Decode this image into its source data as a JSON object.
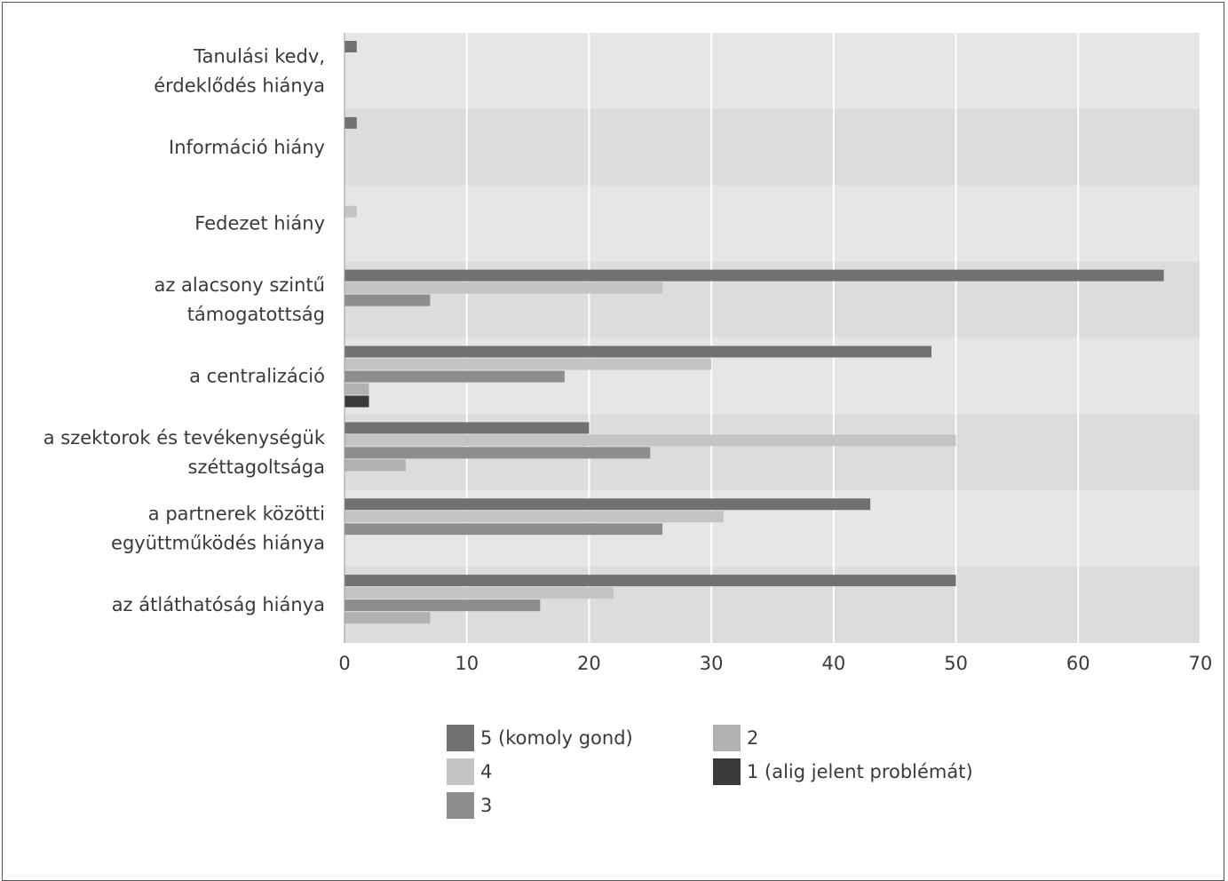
{
  "chart_data": {
    "type": "bar",
    "orientation": "horizontal",
    "categories": [
      [
        "Tanulási kedv,",
        "érdeklődés hiánya"
      ],
      [
        "Információ hiány"
      ],
      [
        "Fedezet hiány"
      ],
      [
        "az alacsony szintű",
        "támogatottság"
      ],
      [
        "a centralizáció"
      ],
      [
        "a szektorok és tevékenységük",
        "széttagoltsága"
      ],
      [
        "a partnerek közötti",
        "együttműködés hiánya"
      ],
      [
        "az átláthatóság hiánya"
      ]
    ],
    "series": [
      {
        "name": "5 (komoly gond)",
        "color": "#717171",
        "values": [
          1,
          1,
          0,
          67,
          48,
          20,
          43,
          50
        ]
      },
      {
        "name": "4",
        "color": "#c4c4c4",
        "values": [
          0,
          0,
          1,
          26,
          30,
          50,
          31,
          22
        ]
      },
      {
        "name": "3",
        "color": "#8d8d8d",
        "values": [
          0,
          0,
          0,
          7,
          18,
          25,
          26,
          16
        ]
      },
      {
        "name": "2",
        "color": "#b1b1b1",
        "values": [
          0,
          0,
          0,
          0,
          2,
          5,
          0,
          7
        ]
      },
      {
        "name": "1 (alig jelent problémát)",
        "color": "#3a3a3a",
        "values": [
          0,
          0,
          0,
          0,
          2,
          0,
          0,
          0
        ]
      }
    ],
    "xlim": [
      0,
      70
    ],
    "xticks": [
      0,
      10,
      20,
      30,
      40,
      50,
      60,
      70
    ],
    "grid": true,
    "legend_position": "bottom",
    "title": "",
    "xlabel": "",
    "ylabel": ""
  }
}
